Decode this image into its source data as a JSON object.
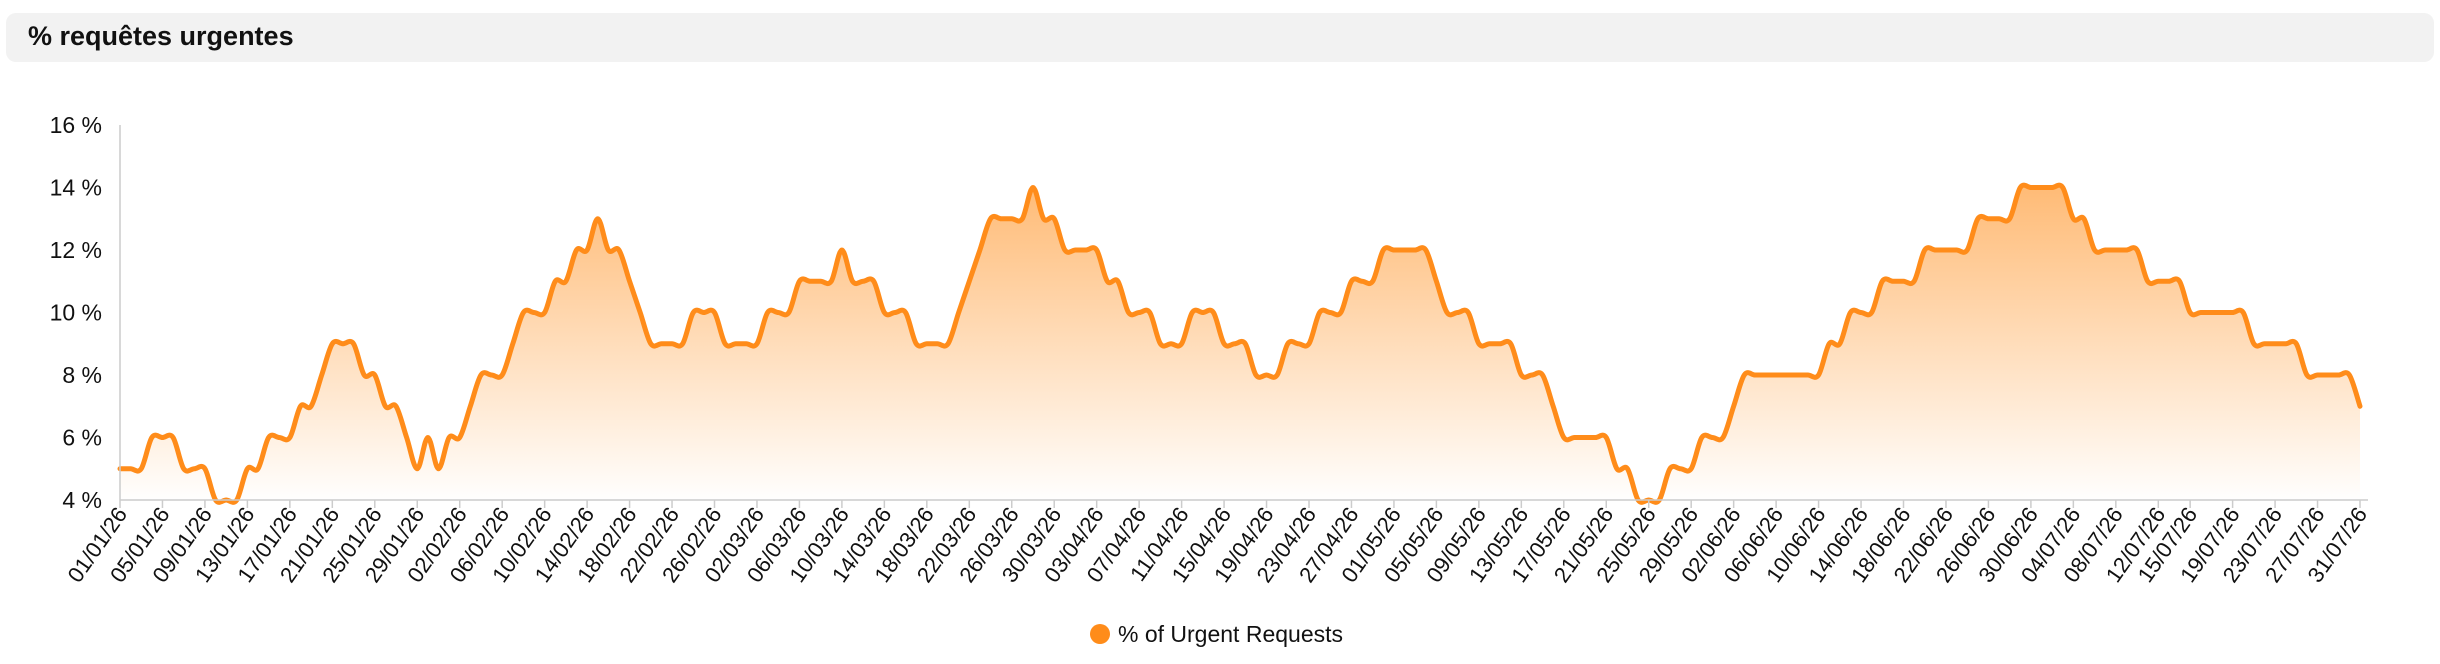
{
  "header": {
    "title": "% requêtes urgentes"
  },
  "colors": {
    "line": "#ff8c1a",
    "fill_top": "#ffb366",
    "fill_bottom": "#ffffff",
    "axis": "#cccccc",
    "text": "#111111"
  },
  "chart_data": {
    "type": "area",
    "title": "% requêtes urgentes",
    "xlabel": "",
    "ylabel": "",
    "ylim": [
      4,
      16
    ],
    "yticks": [
      4,
      6,
      8,
      10,
      12,
      14,
      16
    ],
    "y_tick_suffix": " %",
    "grid": false,
    "legend_position": "bottom-center",
    "x_tick_labels": [
      "01/01/26",
      "05/01/26",
      "09/01/26",
      "13/01/26",
      "17/01/26",
      "21/01/26",
      "25/01/26",
      "29/01/26",
      "02/02/26",
      "06/02/26",
      "10/02/26",
      "14/02/26",
      "18/02/26",
      "22/02/26",
      "26/02/26",
      "02/03/26",
      "06/03/26",
      "10/03/26",
      "14/03/26",
      "18/03/26",
      "22/03/26",
      "26/03/26",
      "30/03/26",
      "03/04/26",
      "07/04/26",
      "11/04/26",
      "15/04/26",
      "19/04/26",
      "23/04/26",
      "27/04/26",
      "01/05/26",
      "05/05/26",
      "09/05/26",
      "13/05/26",
      "17/05/26",
      "21/05/26",
      "25/05/26",
      "29/05/26",
      "02/06/26",
      "06/06/26",
      "10/06/26",
      "14/06/26",
      "18/06/26",
      "22/06/26",
      "26/06/26",
      "30/06/26",
      "04/07/26",
      "08/07/26",
      "12/07/26",
      "15/07/26",
      "19/07/26",
      "23/07/26",
      "27/07/26",
      "31/07/26"
    ],
    "series": [
      {
        "name": "% of Urgent Requests",
        "points": [
          [
            "01/01/26",
            5
          ],
          [
            "02/01/26",
            5
          ],
          [
            "03/01/26",
            5
          ],
          [
            "04/01/26",
            6
          ],
          [
            "05/01/26",
            6
          ],
          [
            "06/01/26",
            6
          ],
          [
            "07/01/26",
            5
          ],
          [
            "08/01/26",
            5
          ],
          [
            "09/01/26",
            5
          ],
          [
            "10/01/26",
            4
          ],
          [
            "11/01/26",
            4
          ],
          [
            "12/01/26",
            4
          ],
          [
            "13/01/26",
            5
          ],
          [
            "14/01/26",
            5
          ],
          [
            "15/01/26",
            6
          ],
          [
            "16/01/26",
            6
          ],
          [
            "17/01/26",
            6
          ],
          [
            "18/01/26",
            7
          ],
          [
            "19/01/26",
            7
          ],
          [
            "20/01/26",
            8
          ],
          [
            "21/01/26",
            9
          ],
          [
            "22/01/26",
            9
          ],
          [
            "23/01/26",
            9
          ],
          [
            "24/01/26",
            8
          ],
          [
            "25/01/26",
            8
          ],
          [
            "26/01/26",
            7
          ],
          [
            "27/01/26",
            7
          ],
          [
            "28/01/26",
            6
          ],
          [
            "29/01/26",
            5
          ],
          [
            "30/01/26",
            6
          ],
          [
            "31/01/26",
            5
          ],
          [
            "01/02/26",
            6
          ],
          [
            "02/02/26",
            6
          ],
          [
            "03/02/26",
            7
          ],
          [
            "04/02/26",
            8
          ],
          [
            "05/02/26",
            8
          ],
          [
            "06/02/26",
            8
          ],
          [
            "07/02/26",
            9
          ],
          [
            "08/02/26",
            10
          ],
          [
            "09/02/26",
            10
          ],
          [
            "10/02/26",
            10
          ],
          [
            "11/02/26",
            11
          ],
          [
            "12/02/26",
            11
          ],
          [
            "13/02/26",
            12
          ],
          [
            "14/02/26",
            12
          ],
          [
            "15/02/26",
            13
          ],
          [
            "16/02/26",
            12
          ],
          [
            "17/02/26",
            12
          ],
          [
            "18/02/26",
            11
          ],
          [
            "19/02/26",
            10
          ],
          [
            "20/02/26",
            9
          ],
          [
            "21/02/26",
            9
          ],
          [
            "22/02/26",
            9
          ],
          [
            "23/02/26",
            9
          ],
          [
            "24/02/26",
            10
          ],
          [
            "25/02/26",
            10
          ],
          [
            "26/02/26",
            10
          ],
          [
            "27/02/26",
            9
          ],
          [
            "28/02/26",
            9
          ],
          [
            "01/03/26",
            9
          ],
          [
            "02/03/26",
            9
          ],
          [
            "03/03/26",
            10
          ],
          [
            "04/03/26",
            10
          ],
          [
            "05/03/26",
            10
          ],
          [
            "06/03/26",
            11
          ],
          [
            "07/03/26",
            11
          ],
          [
            "08/03/26",
            11
          ],
          [
            "09/03/26",
            11
          ],
          [
            "10/03/26",
            12
          ],
          [
            "11/03/26",
            11
          ],
          [
            "12/03/26",
            11
          ],
          [
            "13/03/26",
            11
          ],
          [
            "14/03/26",
            10
          ],
          [
            "15/03/26",
            10
          ],
          [
            "16/03/26",
            10
          ],
          [
            "17/03/26",
            9
          ],
          [
            "18/03/26",
            9
          ],
          [
            "19/03/26",
            9
          ],
          [
            "20/03/26",
            9
          ],
          [
            "21/03/26",
            10
          ],
          [
            "22/03/26",
            11
          ],
          [
            "23/03/26",
            12
          ],
          [
            "24/03/26",
            13
          ],
          [
            "25/03/26",
            13
          ],
          [
            "26/03/26",
            13
          ],
          [
            "27/03/26",
            13
          ],
          [
            "28/03/26",
            14
          ],
          [
            "29/03/26",
            13
          ],
          [
            "30/03/26",
            13
          ],
          [
            "31/03/26",
            12
          ],
          [
            "01/04/26",
            12
          ],
          [
            "02/04/26",
            12
          ],
          [
            "03/04/26",
            12
          ],
          [
            "04/04/26",
            11
          ],
          [
            "05/04/26",
            11
          ],
          [
            "06/04/26",
            10
          ],
          [
            "07/04/26",
            10
          ],
          [
            "08/04/26",
            10
          ],
          [
            "09/04/26",
            9
          ],
          [
            "10/04/26",
            9
          ],
          [
            "11/04/26",
            9
          ],
          [
            "12/04/26",
            10
          ],
          [
            "13/04/26",
            10
          ],
          [
            "14/04/26",
            10
          ],
          [
            "15/04/26",
            9
          ],
          [
            "16/04/26",
            9
          ],
          [
            "17/04/26",
            9
          ],
          [
            "18/04/26",
            8
          ],
          [
            "19/04/26",
            8
          ],
          [
            "20/04/26",
            8
          ],
          [
            "21/04/26",
            9
          ],
          [
            "22/04/26",
            9
          ],
          [
            "23/04/26",
            9
          ],
          [
            "24/04/26",
            10
          ],
          [
            "25/04/26",
            10
          ],
          [
            "26/04/26",
            10
          ],
          [
            "27/04/26",
            11
          ],
          [
            "28/04/26",
            11
          ],
          [
            "29/04/26",
            11
          ],
          [
            "30/04/26",
            12
          ],
          [
            "01/05/26",
            12
          ],
          [
            "02/05/26",
            12
          ],
          [
            "03/05/26",
            12
          ],
          [
            "04/05/26",
            12
          ],
          [
            "05/05/26",
            11
          ],
          [
            "06/05/26",
            10
          ],
          [
            "07/05/26",
            10
          ],
          [
            "08/05/26",
            10
          ],
          [
            "09/05/26",
            9
          ],
          [
            "10/05/26",
            9
          ],
          [
            "11/05/26",
            9
          ],
          [
            "12/05/26",
            9
          ],
          [
            "13/05/26",
            8
          ],
          [
            "14/05/26",
            8
          ],
          [
            "15/05/26",
            8
          ],
          [
            "16/05/26",
            7
          ],
          [
            "17/05/26",
            6
          ],
          [
            "18/05/26",
            6
          ],
          [
            "19/05/26",
            6
          ],
          [
            "20/05/26",
            6
          ],
          [
            "21/05/26",
            6
          ],
          [
            "22/05/26",
            5
          ],
          [
            "23/05/26",
            5
          ],
          [
            "24/05/26",
            4
          ],
          [
            "25/05/26",
            4
          ],
          [
            "26/05/26",
            4
          ],
          [
            "27/05/26",
            5
          ],
          [
            "28/05/26",
            5
          ],
          [
            "29/05/26",
            5
          ],
          [
            "30/05/26",
            6
          ],
          [
            "31/05/26",
            6
          ],
          [
            "01/06/26",
            6
          ],
          [
            "02/06/26",
            7
          ],
          [
            "03/06/26",
            8
          ],
          [
            "04/06/26",
            8
          ],
          [
            "05/06/26",
            8
          ],
          [
            "06/06/26",
            8
          ],
          [
            "07/06/26",
            8
          ],
          [
            "08/06/26",
            8
          ],
          [
            "09/06/26",
            8
          ],
          [
            "10/06/26",
            8
          ],
          [
            "11/06/26",
            9
          ],
          [
            "12/06/26",
            9
          ],
          [
            "13/06/26",
            10
          ],
          [
            "14/06/26",
            10
          ],
          [
            "15/06/26",
            10
          ],
          [
            "16/06/26",
            11
          ],
          [
            "17/06/26",
            11
          ],
          [
            "18/06/26",
            11
          ],
          [
            "19/06/26",
            11
          ],
          [
            "20/06/26",
            12
          ],
          [
            "21/06/26",
            12
          ],
          [
            "22/06/26",
            12
          ],
          [
            "23/06/26",
            12
          ],
          [
            "24/06/26",
            12
          ],
          [
            "25/06/26",
            13
          ],
          [
            "26/06/26",
            13
          ],
          [
            "27/06/26",
            13
          ],
          [
            "28/06/26",
            13
          ],
          [
            "29/06/26",
            14
          ],
          [
            "30/06/26",
            14
          ],
          [
            "01/07/26",
            14
          ],
          [
            "02/07/26",
            14
          ],
          [
            "03/07/26",
            14
          ],
          [
            "04/07/26",
            13
          ],
          [
            "05/07/26",
            13
          ],
          [
            "06/07/26",
            12
          ],
          [
            "07/07/26",
            12
          ],
          [
            "08/07/26",
            12
          ],
          [
            "09/07/26",
            12
          ],
          [
            "10/07/26",
            12
          ],
          [
            "11/07/26",
            11
          ],
          [
            "12/07/26",
            11
          ],
          [
            "13/07/26",
            11
          ],
          [
            "14/07/26",
            11
          ],
          [
            "15/07/26",
            10
          ],
          [
            "16/07/26",
            10
          ],
          [
            "17/07/26",
            10
          ],
          [
            "18/07/26",
            10
          ],
          [
            "19/07/26",
            10
          ],
          [
            "20/07/26",
            10
          ],
          [
            "21/07/26",
            9
          ],
          [
            "22/07/26",
            9
          ],
          [
            "23/07/26",
            9
          ],
          [
            "24/07/26",
            9
          ],
          [
            "25/07/26",
            9
          ],
          [
            "26/07/26",
            8
          ],
          [
            "27/07/26",
            8
          ],
          [
            "28/07/26",
            8
          ],
          [
            "29/07/26",
            8
          ],
          [
            "30/07/26",
            8
          ],
          [
            "31/07/26",
            7
          ]
        ]
      }
    ]
  }
}
